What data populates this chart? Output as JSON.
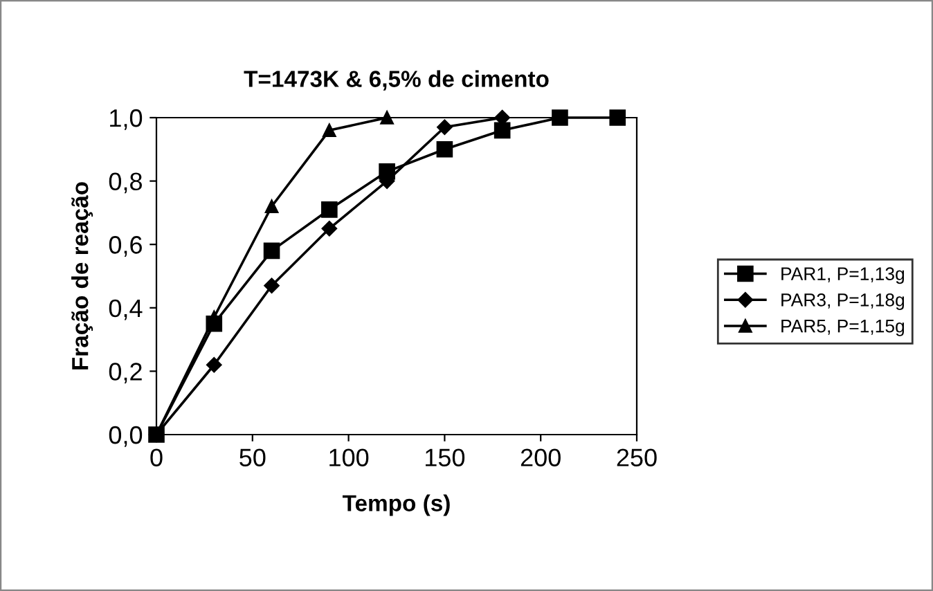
{
  "chart_data": {
    "type": "line",
    "title": "T=1473K & 6,5% de cimento",
    "xlabel": "Tempo (s)",
    "ylabel": "Fração de reação",
    "xlim": [
      0,
      250
    ],
    "xticks": [
      0,
      50,
      100,
      150,
      200,
      250
    ],
    "ylim": [
      0,
      1.0
    ],
    "yticks": [
      {
        "value": 0,
        "label": "0,0"
      },
      {
        "value": 0.2,
        "label": "0,2"
      },
      {
        "value": 0.4,
        "label": "0,4"
      },
      {
        "value": 0.6,
        "label": "0,6"
      },
      {
        "value": 0.8,
        "label": "0,8"
      },
      {
        "value": 1.0,
        "label": "1,0"
      }
    ],
    "grid": false,
    "legend": "right",
    "series": [
      {
        "name": "PAR1, P=1,13g",
        "color": "#000000",
        "marker": "square",
        "x": [
          0,
          30,
          60,
          90,
          120,
          150,
          180,
          210,
          240
        ],
        "values": [
          0,
          0.35,
          0.58,
          0.71,
          0.83,
          0.9,
          0.96,
          1.0,
          1.0
        ]
      },
      {
        "name": "PAR3, P=1,18g",
        "color": "#000000",
        "marker": "diamond",
        "x": [
          0,
          30,
          60,
          90,
          120,
          150,
          180
        ],
        "values": [
          0,
          0.22,
          0.47,
          0.65,
          0.8,
          0.97,
          1.0
        ]
      },
      {
        "name": "PAR5, P=1,15g",
        "color": "#000000",
        "marker": "triangle",
        "x": [
          0,
          30,
          60,
          90,
          120
        ],
        "values": [
          0,
          0.37,
          0.72,
          0.96,
          1.0
        ]
      }
    ]
  }
}
